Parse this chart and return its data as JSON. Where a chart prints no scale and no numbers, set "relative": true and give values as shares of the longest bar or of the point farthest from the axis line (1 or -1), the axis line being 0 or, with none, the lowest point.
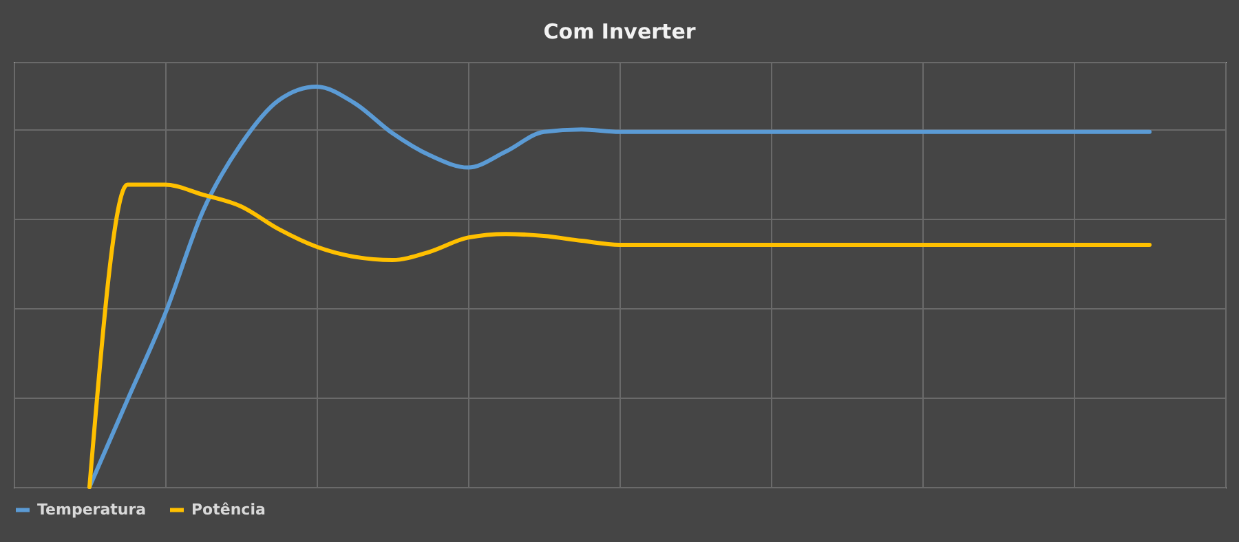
{
  "chart_data": {
    "type": "line",
    "title": "Com Inverter",
    "relative": true,
    "grid": true,
    "legend": "bottom",
    "categories": [
      null,
      null,
      null,
      null,
      null,
      null,
      null,
      null,
      null,
      null,
      null,
      null,
      null,
      null,
      null,
      null,
      null,
      null,
      null,
      null,
      null,
      null,
      null,
      null,
      null,
      null,
      null,
      null,
      null
    ],
    "series": [
      {
        "name": "Temperatura",
        "color": "#5b9bd5",
        "values": [
          0,
          0.217,
          0.433,
          0.69,
          0.856,
          0.966,
          1.0,
          0.959,
          0.884,
          0.828,
          0.798,
          0.838,
          0.887,
          0.893,
          0.887,
          0.887,
          0.887,
          0.887,
          0.887,
          0.887,
          0.887,
          0.887,
          0.887,
          0.887,
          0.887,
          0.887,
          0.887,
          0.887,
          0.887
        ]
      },
      {
        "name": "Potência",
        "color": "#ffc000",
        "values": [
          0,
          0.755,
          0.755,
          0.73,
          0.701,
          0.644,
          0.6,
          0.575,
          0.567,
          0.588,
          0.623,
          0.632,
          0.627,
          0.615,
          0.605,
          0.605,
          0.605,
          0.605,
          0.605,
          0.605,
          0.605,
          0.605,
          0.605,
          0.605,
          0.605,
          0.605,
          0.605,
          0.605,
          0.605
        ]
      }
    ]
  }
}
